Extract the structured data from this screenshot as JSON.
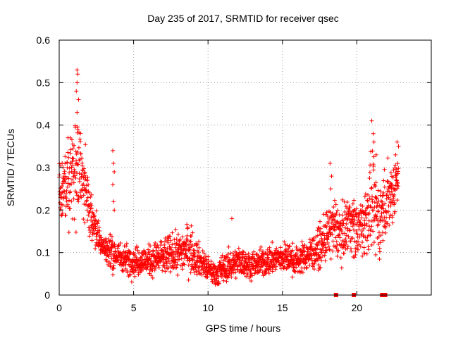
{
  "chart_data": {
    "type": "scatter",
    "title": "Day 235 of 2017, SRMTID for receiver qsec",
    "xlabel": "GPS time / hours",
    "ylabel": "SRMTID / TECUs",
    "xlim": [
      0,
      25
    ],
    "ylim": [
      0,
      0.6
    ],
    "x_ticks": [
      0,
      5,
      10,
      15,
      20
    ],
    "y_ticks": [
      0,
      0.1,
      0.2,
      0.3,
      0.4,
      0.5,
      0.6
    ],
    "x_tick_labels": [
      "0",
      "5",
      "10",
      "15",
      "20"
    ],
    "y_tick_labels": [
      "0",
      "0.1",
      "0.2",
      "0.3",
      "0.4",
      "0.5",
      "0.6"
    ],
    "grid": true,
    "marker": "+",
    "color": "#ff0000",
    "trend": {
      "x": [
        0.0,
        0.3,
        0.8,
        1.2,
        1.6,
        2.0,
        2.5,
        3.0,
        3.5,
        4.0,
        5.0,
        6.0,
        7.0,
        8.0,
        8.7,
        9.5,
        10.0,
        10.5,
        11.0,
        11.5,
        12.0,
        13.0,
        14.0,
        15.0,
        16.0,
        16.5,
        17.5,
        18.0,
        18.5,
        19.0,
        19.5,
        20.0,
        20.5,
        21.0,
        21.5,
        22.0,
        22.5,
        22.8
      ],
      "center": [
        0.22,
        0.24,
        0.3,
        0.32,
        0.26,
        0.2,
        0.15,
        0.11,
        0.1,
        0.09,
        0.08,
        0.08,
        0.09,
        0.1,
        0.11,
        0.08,
        0.06,
        0.05,
        0.06,
        0.07,
        0.08,
        0.07,
        0.08,
        0.09,
        0.08,
        0.09,
        0.11,
        0.14,
        0.16,
        0.14,
        0.18,
        0.15,
        0.17,
        0.21,
        0.18,
        0.22,
        0.25,
        0.3
      ],
      "spread": [
        0.07,
        0.08,
        0.1,
        0.12,
        0.08,
        0.06,
        0.04,
        0.03,
        0.04,
        0.03,
        0.03,
        0.03,
        0.04,
        0.04,
        0.05,
        0.03,
        0.025,
        0.025,
        0.03,
        0.03,
        0.03,
        0.025,
        0.03,
        0.03,
        0.03,
        0.03,
        0.04,
        0.05,
        0.06,
        0.05,
        0.06,
        0.06,
        0.07,
        0.09,
        0.08,
        0.07,
        0.07,
        0.05
      ]
    },
    "outliers": [
      {
        "x": 1.2,
        "y": 0.53
      },
      {
        "x": 1.25,
        "y": 0.52
      },
      {
        "x": 1.2,
        "y": 0.5
      },
      {
        "x": 1.15,
        "y": 0.48
      },
      {
        "x": 1.3,
        "y": 0.46
      },
      {
        "x": 1.2,
        "y": 0.43
      },
      {
        "x": 3.6,
        "y": 0.34
      },
      {
        "x": 3.65,
        "y": 0.31
      },
      {
        "x": 3.7,
        "y": 0.29
      },
      {
        "x": 3.6,
        "y": 0.26
      },
      {
        "x": 3.65,
        "y": 0.22
      },
      {
        "x": 3.7,
        "y": 0.2
      },
      {
        "x": 11.6,
        "y": 0.18
      },
      {
        "x": 18.2,
        "y": 0.31
      },
      {
        "x": 18.3,
        "y": 0.28
      },
      {
        "x": 18.25,
        "y": 0.25
      },
      {
        "x": 21.0,
        "y": 0.41
      },
      {
        "x": 21.1,
        "y": 0.38
      },
      {
        "x": 21.15,
        "y": 0.36
      },
      {
        "x": 21.3,
        "y": 0.33
      },
      {
        "x": 22.7,
        "y": 0.36
      },
      {
        "x": 22.8,
        "y": 0.35
      },
      {
        "x": 22.6,
        "y": 0.33
      }
    ],
    "zero_flags_x": [
      18.6,
      19.8,
      21.7,
      21.8,
      21.9
    ]
  }
}
